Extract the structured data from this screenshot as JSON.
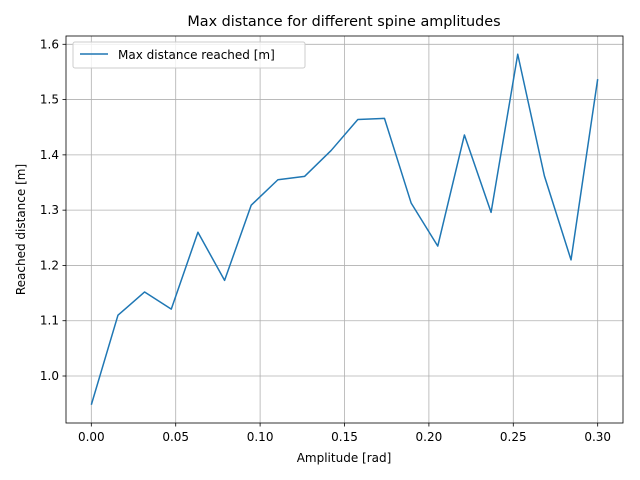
{
  "chart_data": {
    "type": "line",
    "title": "Max distance for different spine amplitudes",
    "xlabel": "Amplitude [rad]",
    "ylabel": "Reached distance [m]",
    "xlim": [
      -0.015,
      0.315
    ],
    "ylim": [
      0.915,
      1.615
    ],
    "xticks": [
      0.0,
      0.05,
      0.1,
      0.15,
      0.2,
      0.25,
      0.3
    ],
    "xtick_labels": [
      "0.00",
      "0.05",
      "0.10",
      "0.15",
      "0.20",
      "0.25",
      "0.30"
    ],
    "yticks": [
      1.0,
      1.1,
      1.2,
      1.3,
      1.4,
      1.5,
      1.6
    ],
    "ytick_labels": [
      "1.0",
      "1.1",
      "1.2",
      "1.3",
      "1.4",
      "1.5",
      "1.6"
    ],
    "grid": true,
    "legend_position": "upper-left",
    "colors": {
      "series": "#1f77b4",
      "grid": "#b0b0b0",
      "axes": "#000000"
    },
    "series": [
      {
        "name": "Max distance reached [m]",
        "x": [
          0.0,
          0.01579,
          0.03158,
          0.04737,
          0.06316,
          0.07895,
          0.09474,
          0.11053,
          0.12632,
          0.14211,
          0.15789,
          0.17368,
          0.18947,
          0.20526,
          0.22105,
          0.23684,
          0.25263,
          0.26842,
          0.28421,
          0.3
        ],
        "y": [
          0.948,
          1.11,
          1.152,
          1.121,
          1.26,
          1.173,
          1.309,
          1.355,
          1.361,
          1.408,
          1.464,
          1.466,
          1.313,
          1.235,
          1.436,
          1.296,
          1.582,
          1.362,
          1.21,
          1.537
        ]
      }
    ]
  }
}
